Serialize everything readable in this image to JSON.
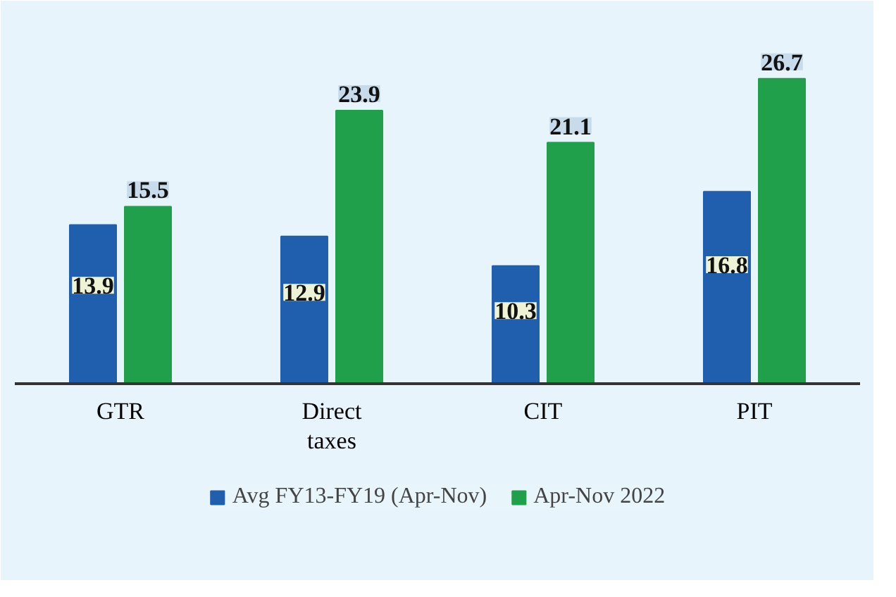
{
  "chart_data": {
    "type": "bar",
    "categories": [
      "GTR",
      "Direct taxes",
      "CIT",
      "PIT"
    ],
    "series": [
      {
        "name": "Avg FY13-FY19 (Apr-Nov)",
        "color": "#1f5fae",
        "values": [
          13.9,
          12.9,
          10.3,
          16.8
        ]
      },
      {
        "name": "Apr-Nov 2022",
        "color": "#21a04c",
        "values": [
          15.5,
          23.9,
          21.1,
          26.7
        ]
      }
    ],
    "data_labels": true,
    "legend": "bottom"
  }
}
